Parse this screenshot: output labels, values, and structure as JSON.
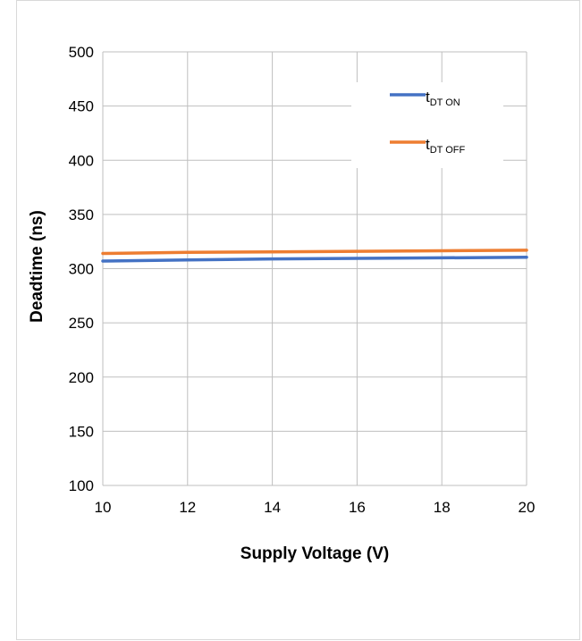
{
  "chart_data": {
    "type": "line",
    "xlabel": "Supply Voltage (V)",
    "ylabel": "Deadtime (ns)",
    "xlim": [
      10,
      20
    ],
    "ylim": [
      100,
      500
    ],
    "xticks": [
      "10",
      "12",
      "14",
      "16",
      "18",
      "20"
    ],
    "yticks": [
      "100",
      "150",
      "200",
      "250",
      "300",
      "350",
      "400",
      "450",
      "500"
    ],
    "grid": true,
    "legend_position": "top-right",
    "series": [
      {
        "name_main": "t",
        "name_sub": "DT ON",
        "color": "#4472c4",
        "x": [
          10,
          12,
          14,
          16,
          18,
          20
        ],
        "y": [
          307,
          308,
          309,
          309.5,
          310,
          310.5
        ]
      },
      {
        "name_main": "t",
        "name_sub": "DT OFF",
        "color": "#ed7d31",
        "x": [
          10,
          12,
          14,
          16,
          18,
          20
        ],
        "y": [
          314,
          315,
          315.5,
          316,
          316.5,
          317
        ]
      }
    ]
  }
}
